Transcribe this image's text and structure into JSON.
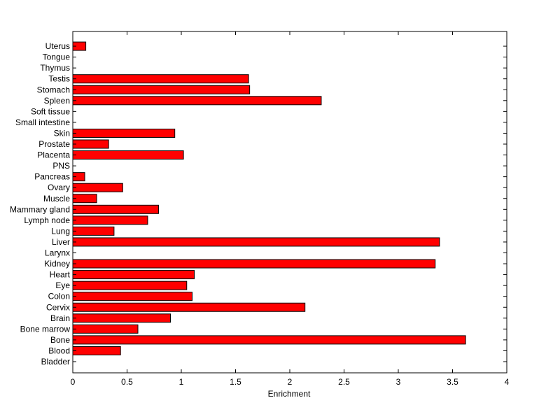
{
  "chart_data": {
    "type": "bar",
    "orientation": "horizontal",
    "title": "",
    "xlabel": "Enrichment",
    "ylabel": "",
    "xlim": [
      0,
      4
    ],
    "xticks": [
      0,
      0.5,
      1,
      1.5,
      2,
      2.5,
      3,
      3.5,
      4
    ],
    "xtick_labels": [
      "0",
      "0.5",
      "1",
      "1.5",
      "2",
      "2.5",
      "3",
      "3.5",
      "4"
    ],
    "grid": false,
    "legend": "none",
    "bar_color": "#ff0000",
    "bar_edge_color": "#000000",
    "categories": [
      "Bladder",
      "Blood",
      "Bone",
      "Bone marrow",
      "Brain",
      "Cervix",
      "Colon",
      "Eye",
      "Heart",
      "Kidney",
      "Larynx",
      "Liver",
      "Lung",
      "Lymph node",
      "Mammary gland",
      "Muscle",
      "Ovary",
      "Pancreas",
      "PNS",
      "Placenta",
      "Prostate",
      "Skin",
      "Small intestine",
      "Soft tissue",
      "Spleen",
      "Stomach",
      "Testis",
      "Thymus",
      "Tongue",
      "Uterus"
    ],
    "values": [
      0,
      0.44,
      3.62,
      0.6,
      0.9,
      2.14,
      1.1,
      1.05,
      1.12,
      3.34,
      0,
      3.38,
      0.38,
      0.69,
      0.79,
      0.22,
      0.46,
      0.11,
      0,
      1.02,
      0.33,
      0.94,
      0,
      0,
      2.29,
      1.63,
      1.62,
      0,
      0,
      0.12
    ]
  }
}
